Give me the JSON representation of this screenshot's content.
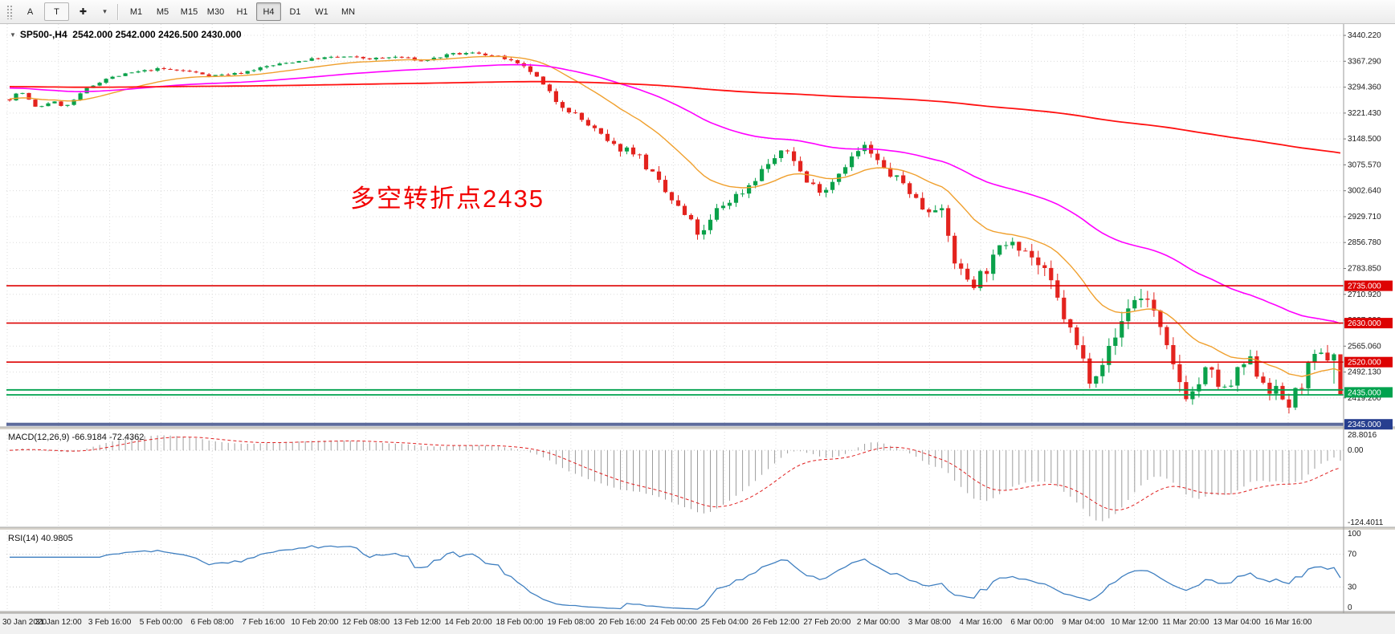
{
  "icons": {
    "collapse": "▼",
    "caret": "▾",
    "crosshair": "✚"
  },
  "toolbar": {
    "tools": [
      {
        "name": "text",
        "label": "A"
      },
      {
        "name": "text-label",
        "label": "T",
        "boxed": true
      },
      {
        "name": "crosshair",
        "icon": "crosshair"
      },
      {
        "name": "tools-dropdown",
        "icon": "caret",
        "caret": true
      }
    ],
    "timeframes": [
      {
        "label": "M1",
        "active": false
      },
      {
        "label": "M5",
        "active": false
      },
      {
        "label": "M15",
        "active": false
      },
      {
        "label": "M30",
        "active": false
      },
      {
        "label": "H1",
        "active": false
      },
      {
        "label": "H4",
        "active": true
      },
      {
        "label": "D1",
        "active": false
      },
      {
        "label": "W1",
        "active": false
      },
      {
        "label": "MN",
        "active": false
      }
    ]
  },
  "chart": {
    "title": "SP500-,H4  2542.000 2542.000 2426.500 2430.000",
    "annotation": {
      "text": "多空转折点2435",
      "color": "#f20000"
    },
    "price_axis_labels": [
      "3440.220",
      "3367.290",
      "3294.360",
      "3221.430",
      "3148.500",
      "3075.570",
      "3002.640",
      "2929.710",
      "2856.780",
      "2783.850",
      "2710.920",
      "2637.990",
      "2565.060",
      "2492.130",
      "2419.200"
    ],
    "time_axis_labels": [
      "30 Jan 2020",
      "31 Jan 12:00",
      "3 Feb 16:00",
      "5 Feb 00:00",
      "6 Feb 08:00",
      "7 Feb 16:00",
      "10 Feb 20:00",
      "12 Feb 08:00",
      "13 Feb 12:00",
      "14 Feb 20:00",
      "18 Feb 00:00",
      "19 Feb 08:00",
      "20 Feb 16:00",
      "24 Feb 00:00",
      "25 Feb 04:00",
      "26 Feb 12:00",
      "27 Feb 20:00",
      "2 Mar 00:00",
      "3 Mar 08:00",
      "4 Mar 16:00",
      "6 Mar 00:00",
      "9 Mar 04:00",
      "10 Mar 12:00",
      "11 Mar 20:00",
      "13 Mar 04:00",
      "16 Mar 16:00"
    ],
    "levels": [
      {
        "label": "2735.000",
        "price": 2735,
        "line_color": "#dd0202",
        "badge_color": "#dd0202",
        "lines": [
          2735
        ],
        "width": 1.6
      },
      {
        "label": "2630.000",
        "price": 2630,
        "line_color": "#dd0202",
        "badge_color": "#dd0202",
        "lines": [
          2630
        ],
        "width": 1.6
      },
      {
        "label": "2520.000",
        "price": 2520,
        "line_color": "#dd0202",
        "badge_color": "#dd0202",
        "lines": [
          2520
        ],
        "width": 1.6
      },
      {
        "label": "2435.000",
        "price": 2435,
        "line_color": "#00a24e",
        "badge_color": "#00a24e",
        "lines": [
          2442,
          2428
        ],
        "width": 1.8
      },
      {
        "label": "2345.000",
        "price": 2345,
        "line_color": "#5d6b9c",
        "badge_color": "#273f8f",
        "lines": [
          2345
        ],
        "width": 4
      }
    ]
  },
  "macd_panel": {
    "title_full": "MACD(12,26,9) -66.9184 -72.4362",
    "axis_top": "28.8016",
    "axis_zero": "0.00",
    "axis_bottom": "-124.4011"
  },
  "rsi_panel": {
    "title_full": "RSI(14) 40.9805",
    "axis_labels": [
      "100",
      "70",
      "30",
      "0"
    ],
    "levels": [
      70,
      30
    ]
  },
  "chart_data": {
    "type": "candlestick",
    "symbol": "SP500-",
    "timeframe": "H4",
    "date_range": "30 Jan 2020 - 16 Mar 2020",
    "bars": 208,
    "last_ohlc": {
      "open": 2542.0,
      "high": 2542.0,
      "low": 2426.5,
      "close": 2430.0
    },
    "support_resistance": [
      2735,
      2630,
      2520,
      2435,
      2345
    ],
    "price_path": [
      [
        0,
        3260
      ],
      [
        0.008,
        3285
      ],
      [
        0.02,
        3235
      ],
      [
        0.032,
        3255
      ],
      [
        0.042,
        3238
      ],
      [
        0.058,
        3290
      ],
      [
        0.072,
        3318
      ],
      [
        0.092,
        3335
      ],
      [
        0.112,
        3346
      ],
      [
        0.132,
        3340
      ],
      [
        0.152,
        3327
      ],
      [
        0.172,
        3333
      ],
      [
        0.192,
        3352
      ],
      [
        0.212,
        3365
      ],
      [
        0.232,
        3376
      ],
      [
        0.252,
        3380
      ],
      [
        0.272,
        3374
      ],
      [
        0.292,
        3380
      ],
      [
        0.31,
        3368
      ],
      [
        0.332,
        3387
      ],
      [
        0.352,
        3391
      ],
      [
        0.372,
        3375
      ],
      [
        0.392,
        3338
      ],
      [
        0.41,
        3258
      ],
      [
        0.422,
        3226
      ],
      [
        0.44,
        3172
      ],
      [
        0.452,
        3128
      ],
      [
        0.47,
        3115
      ],
      [
        0.492,
        3000
      ],
      [
        0.51,
        2920
      ],
      [
        0.52,
        2870
      ],
      [
        0.532,
        2952
      ],
      [
        0.552,
        3005
      ],
      [
        0.572,
        3088
      ],
      [
        0.586,
        3118
      ],
      [
        0.598,
        3028
      ],
      [
        0.612,
        3002
      ],
      [
        0.628,
        3078
      ],
      [
        0.642,
        3128
      ],
      [
        0.658,
        3058
      ],
      [
        0.672,
        3022
      ],
      [
        0.688,
        2946
      ],
      [
        0.698,
        2970
      ],
      [
        0.712,
        2782
      ],
      [
        0.724,
        2744
      ],
      [
        0.738,
        2800
      ],
      [
        0.752,
        2880
      ],
      [
        0.768,
        2818
      ],
      [
        0.782,
        2742
      ],
      [
        0.798,
        2598
      ],
      [
        0.812,
        2478
      ],
      [
        0.828,
        2562
      ],
      [
        0.842,
        2692
      ],
      [
        0.856,
        2704
      ],
      [
        0.872,
        2520
      ],
      [
        0.886,
        2418
      ],
      [
        0.9,
        2498
      ],
      [
        0.914,
        2432
      ],
      [
        0.93,
        2528
      ],
      [
        0.946,
        2452
      ],
      [
        0.962,
        2398
      ],
      [
        0.978,
        2518
      ],
      [
        0.99,
        2540
      ],
      [
        1,
        2430
      ]
    ],
    "volatility_path": [
      [
        0,
        6
      ],
      [
        0.36,
        7
      ],
      [
        0.41,
        16
      ],
      [
        0.47,
        26
      ],
      [
        0.52,
        30
      ],
      [
        0.6,
        22
      ],
      [
        0.68,
        26
      ],
      [
        0.71,
        40
      ],
      [
        0.8,
        45
      ],
      [
        0.86,
        48
      ],
      [
        1,
        44
      ]
    ],
    "moving_averages": [
      {
        "name": "ma-fast",
        "period": 20,
        "seed": 3262,
        "color": "#f0a02e",
        "width": 1.4
      },
      {
        "name": "ma-mid",
        "period": 66,
        "seed": 3293,
        "color": "#ff00ff",
        "width": 1.6
      },
      {
        "name": "ma-slow",
        "period": 500,
        "seed": 3296,
        "color": "#ff1111",
        "width": 1.8
      }
    ],
    "indicators": {
      "macd": {
        "fast": 12,
        "slow": 26,
        "signal": 9,
        "value": -66.9184,
        "signal_value": -72.4362,
        "axis_max": 28.8016,
        "axis_min": -124.4011
      },
      "rsi": {
        "period": 14,
        "value": 40.9805,
        "levels": [
          70,
          30
        ]
      }
    },
    "colors": {
      "up_candle": "#0aa14a",
      "down_candle": "#e3231e",
      "macd_histogram": "#9c9c9c",
      "macd_signal": "#e02020",
      "rsi_line": "#3f7fc0",
      "grid": "#dcdcdc"
    }
  }
}
